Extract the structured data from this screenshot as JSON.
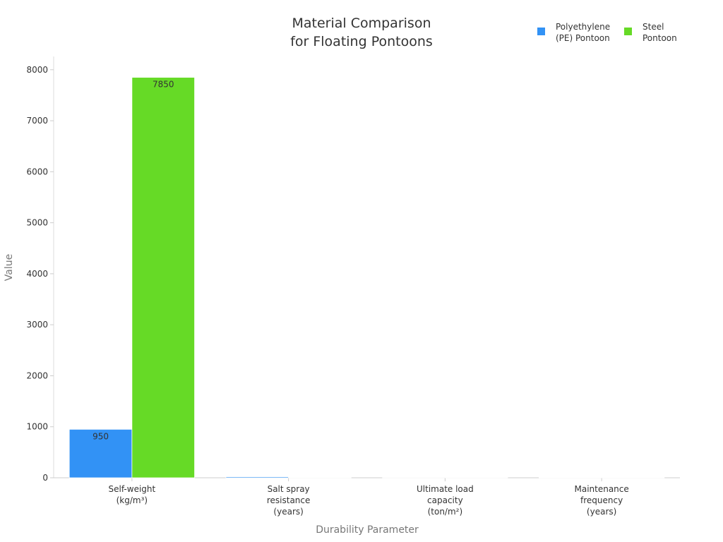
{
  "chart_data": {
    "type": "bar",
    "title": "Material Comparison\nfor Floating Pontoons",
    "x_label": "Durability Parameter",
    "y_label": "Value",
    "categories": [
      "Self-weight\n(kg/m³)",
      "Salt spray\nresistance\n(years)",
      "Ultimate load\ncapacity\n(ton/m²)",
      "Maintenance\nfrequency\n(years)"
    ],
    "series": [
      {
        "name": "Polyethylene\n(PE) Pontoon",
        "color": "#3292f5",
        "values": [
          950,
          20,
          0.6,
          10
        ]
      },
      {
        "name": "Steel\nPontoon",
        "color": "#66da26",
        "values": [
          7850,
          8,
          1.2,
          2
        ]
      }
    ],
    "ylim": [
      0,
      8260
    ],
    "yticks": [
      0,
      1000,
      2000,
      3000,
      4000,
      5000,
      6000,
      7000,
      8000
    ],
    "legend": "top-right"
  }
}
